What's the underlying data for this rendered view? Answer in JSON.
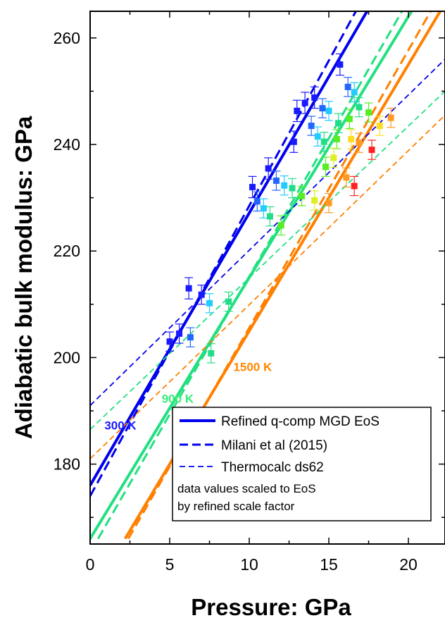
{
  "chart_data": {
    "type": "scatter",
    "xlabel": "Pressure: GPa",
    "ylabel": "Adiabatic bulk modulus: GPa",
    "xlim": [
      0,
      22.3
    ],
    "ylim": [
      165,
      265
    ],
    "xticks": [
      0,
      5,
      10,
      15,
      20
    ],
    "yticks": [
      180,
      200,
      220,
      240,
      260
    ],
    "temperature_labels": [
      {
        "text": "300 K",
        "color": "#1a1aff",
        "x": 0.9,
        "y": 186.5
      },
      {
        "text": "900 K",
        "color": "#33ee77",
        "x": 4.5,
        "y": 191.5
      },
      {
        "text": "1500 K",
        "color": "#ff8800",
        "x": 9.0,
        "y": 197.5
      }
    ],
    "lines": [
      {
        "style": "solid",
        "color": "#0000ee",
        "x": [
          0,
          17.4
        ],
        "y": [
          176,
          265
        ]
      },
      {
        "style": "solid",
        "color": "#22e080",
        "x": [
          0,
          20.2
        ],
        "y": [
          166,
          265
        ]
      },
      {
        "style": "solid",
        "color": "#ff8000",
        "x": [
          2.2,
          22.0
        ],
        "y": [
          166,
          265
        ]
      },
      {
        "style": "dashed",
        "color": "#0000ee",
        "x": [
          0,
          16.7
        ],
        "y": [
          174,
          265
        ]
      },
      {
        "style": "dashed",
        "color": "#22e080",
        "x": [
          0.5,
          19.6
        ],
        "y": [
          166,
          265
        ]
      },
      {
        "style": "dashed",
        "color": "#ff8000",
        "x": [
          2.4,
          21.4
        ],
        "y": [
          166,
          265
        ]
      },
      {
        "style": "thin-dashed",
        "color": "#0000ee",
        "x": [
          0,
          22.3
        ],
        "y": [
          191,
          256
        ]
      },
      {
        "style": "thin-dashed",
        "color": "#22e080",
        "x": [
          0,
          22.3
        ],
        "y": [
          186.5,
          250
        ]
      },
      {
        "style": "thin-dashed",
        "color": "#ff8000",
        "x": [
          0,
          22.3
        ],
        "y": [
          181,
          245.5
        ]
      }
    ],
    "points": [
      {
        "x": 5.0,
        "y": 203.0,
        "err": 1.8,
        "color": "#1a1aff"
      },
      {
        "x": 5.6,
        "y": 204.5,
        "err": 1.8,
        "color": "#1a1aff"
      },
      {
        "x": 6.2,
        "y": 213.0,
        "err": 2.0,
        "color": "#1a1aff"
      },
      {
        "x": 7.0,
        "y": 211.8,
        "err": 1.8,
        "color": "#1a1aff"
      },
      {
        "x": 10.2,
        "y": 232.0,
        "err": 2.0,
        "color": "#1a1aff"
      },
      {
        "x": 11.2,
        "y": 235.5,
        "err": 2.0,
        "color": "#1a1aff"
      },
      {
        "x": 12.8,
        "y": 240.5,
        "err": 2.0,
        "color": "#1a1aff"
      },
      {
        "x": 13.0,
        "y": 246.3,
        "err": 2.0,
        "color": "#1a1aff"
      },
      {
        "x": 13.5,
        "y": 247.8,
        "err": 2.0,
        "color": "#1a1aff"
      },
      {
        "x": 14.1,
        "y": 248.8,
        "err": 2.0,
        "color": "#1a1aff"
      },
      {
        "x": 15.7,
        "y": 255.0,
        "err": 2.0,
        "color": "#1a1aff"
      },
      {
        "x": 6.3,
        "y": 203.8,
        "err": 1.8,
        "color": "#2266ff"
      },
      {
        "x": 10.5,
        "y": 229.3,
        "err": 1.8,
        "color": "#2266ff"
      },
      {
        "x": 11.7,
        "y": 233.2,
        "err": 1.8,
        "color": "#2266ff"
      },
      {
        "x": 13.9,
        "y": 243.5,
        "err": 1.8,
        "color": "#2266ff"
      },
      {
        "x": 14.6,
        "y": 246.8,
        "err": 1.8,
        "color": "#2266ff"
      },
      {
        "x": 16.2,
        "y": 250.8,
        "err": 1.8,
        "color": "#2266ff"
      },
      {
        "x": 7.5,
        "y": 210.2,
        "err": 1.8,
        "color": "#22ccff"
      },
      {
        "x": 10.9,
        "y": 228.0,
        "err": 1.8,
        "color": "#22ccff"
      },
      {
        "x": 12.2,
        "y": 232.3,
        "err": 1.8,
        "color": "#22ccff"
      },
      {
        "x": 15.0,
        "y": 246.3,
        "err": 1.8,
        "color": "#22ccff"
      },
      {
        "x": 16.6,
        "y": 249.8,
        "err": 1.8,
        "color": "#22ccff"
      },
      {
        "x": 14.3,
        "y": 241.5,
        "err": 1.8,
        "color": "#22ccff"
      },
      {
        "x": 7.6,
        "y": 200.8,
        "err": 1.8,
        "color": "#22dd88"
      },
      {
        "x": 8.7,
        "y": 210.5,
        "err": 1.8,
        "color": "#22dd88"
      },
      {
        "x": 11.3,
        "y": 226.5,
        "err": 1.8,
        "color": "#22dd88"
      },
      {
        "x": 12.7,
        "y": 231.8,
        "err": 1.8,
        "color": "#22dd88"
      },
      {
        "x": 14.7,
        "y": 240.5,
        "err": 1.8,
        "color": "#22dd88"
      },
      {
        "x": 15.6,
        "y": 244.0,
        "err": 1.8,
        "color": "#22dd88"
      },
      {
        "x": 16.9,
        "y": 247.0,
        "err": 1.8,
        "color": "#22dd88"
      },
      {
        "x": 12.0,
        "y": 224.8,
        "err": 1.8,
        "color": "#55ee22"
      },
      {
        "x": 13.3,
        "y": 230.3,
        "err": 1.8,
        "color": "#55ee22"
      },
      {
        "x": 14.8,
        "y": 235.8,
        "err": 1.8,
        "color": "#55ee22"
      },
      {
        "x": 15.5,
        "y": 241.0,
        "err": 1.8,
        "color": "#55ee22"
      },
      {
        "x": 16.3,
        "y": 244.8,
        "err": 1.8,
        "color": "#55ee22"
      },
      {
        "x": 17.5,
        "y": 246.0,
        "err": 1.8,
        "color": "#55ee22"
      },
      {
        "x": 14.1,
        "y": 229.5,
        "err": 1.8,
        "color": "#ddee22"
      },
      {
        "x": 15.3,
        "y": 237.5,
        "err": 1.8,
        "color": "#ddee22"
      },
      {
        "x": 16.4,
        "y": 241.0,
        "err": 1.8,
        "color": "#ffdd22"
      },
      {
        "x": 18.2,
        "y": 243.5,
        "err": 1.8,
        "color": "#ffdd22"
      },
      {
        "x": 15.0,
        "y": 229.0,
        "err": 1.8,
        "color": "#ff9922"
      },
      {
        "x": 16.1,
        "y": 233.8,
        "err": 1.8,
        "color": "#ff9922"
      },
      {
        "x": 16.9,
        "y": 240.3,
        "err": 1.8,
        "color": "#ff9922"
      },
      {
        "x": 18.9,
        "y": 245.0,
        "err": 1.8,
        "color": "#ff9922"
      },
      {
        "x": 16.6,
        "y": 232.2,
        "err": 1.8,
        "color": "#ff2222"
      },
      {
        "x": 17.7,
        "y": 239.0,
        "err": 1.8,
        "color": "#ff2222"
      }
    ],
    "legend": {
      "placement": "bottom-right",
      "entries": [
        {
          "text": "Refined q-comp MGD EoS",
          "style": "solid",
          "color": "#0000ee"
        },
        {
          "text": "Milani et al (2015)",
          "style": "dashed",
          "color": "#0000ee"
        },
        {
          "text": "Thermocalc ds62",
          "style": "thin-dashed",
          "color": "#0000ee"
        }
      ],
      "note_lines": [
        "data values scaled to EoS",
        "by refined scale factor"
      ]
    }
  }
}
